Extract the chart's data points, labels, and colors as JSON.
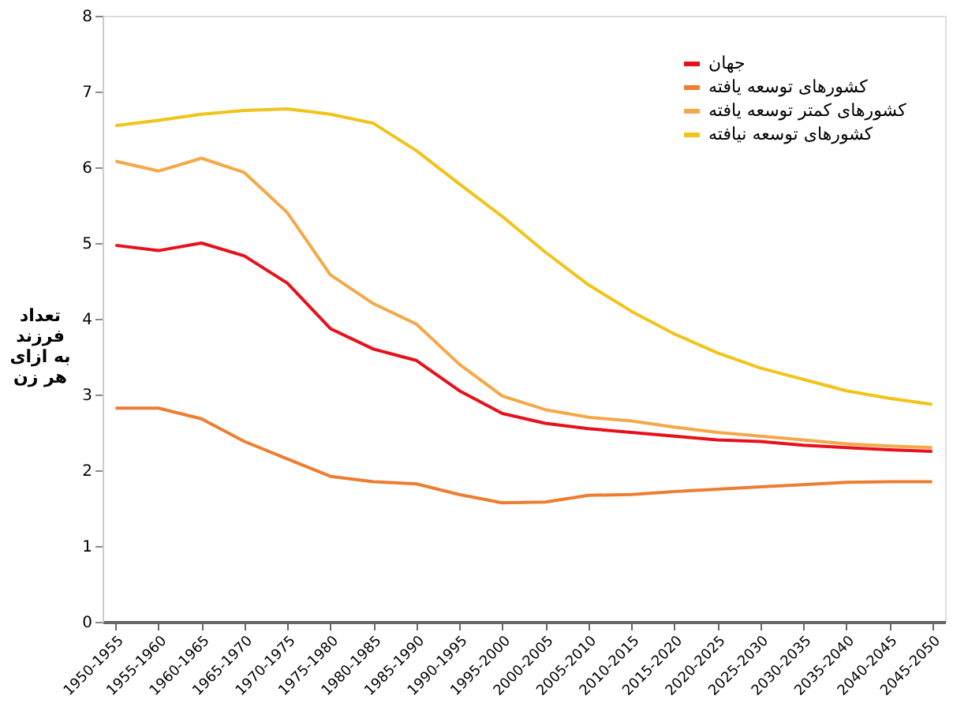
{
  "chart_data": {
    "type": "line",
    "ylabel": "تعداد\nفرزند\nبه ازای\nهر زن",
    "categories": [
      "1950-1955",
      "1955-1960",
      "1960-1965",
      "1965-1970",
      "1970-1975",
      "1975-1980",
      "1980-1985",
      "1985-1990",
      "1990-1995",
      "1995-2000",
      "2000-2005",
      "2005-2010",
      "2010-2015",
      "2015-2020",
      "2020-2025",
      "2025-2030",
      "2030-2035",
      "2035-2040",
      "2040-2045",
      "2045-2050"
    ],
    "series": [
      {
        "name": "جهان",
        "color": "#e8101a",
        "values": [
          4.97,
          4.9,
          5.0,
          4.83,
          4.47,
          3.87,
          3.6,
          3.45,
          3.05,
          2.75,
          2.62,
          2.55,
          2.5,
          2.45,
          2.4,
          2.38,
          2.33,
          2.3,
          2.27,
          2.25
        ]
      },
      {
        "name": "کشورهای توسعه یافته",
        "color": "#ee7d31",
        "values": [
          2.82,
          2.82,
          2.68,
          2.38,
          2.15,
          1.92,
          1.85,
          1.82,
          1.68,
          1.57,
          1.58,
          1.67,
          1.68,
          1.72,
          1.75,
          1.78,
          1.81,
          1.84,
          1.85,
          1.85
        ]
      },
      {
        "name": "کشورهای کمتر توسعه یافته",
        "color": "#f5a847",
        "values": [
          6.08,
          5.95,
          6.12,
          5.93,
          5.4,
          4.58,
          4.2,
          3.93,
          3.4,
          2.98,
          2.8,
          2.7,
          2.65,
          2.57,
          2.5,
          2.45,
          2.4,
          2.35,
          2.32,
          2.3
        ]
      },
      {
        "name": "کشورهای توسعه نیافته",
        "color": "#f2c318",
        "values": [
          6.55,
          6.62,
          6.7,
          6.75,
          6.77,
          6.7,
          6.58,
          6.22,
          5.78,
          5.35,
          4.88,
          4.45,
          4.1,
          3.8,
          3.55,
          3.35,
          3.2,
          3.05,
          2.95,
          2.87
        ]
      }
    ],
    "ylim": [
      0,
      8
    ],
    "yticks": [
      0,
      1,
      2,
      3,
      4,
      5,
      6,
      7,
      8
    ],
    "legend": "top right",
    "grid": false,
    "marker": "none",
    "line_style": "solid"
  }
}
